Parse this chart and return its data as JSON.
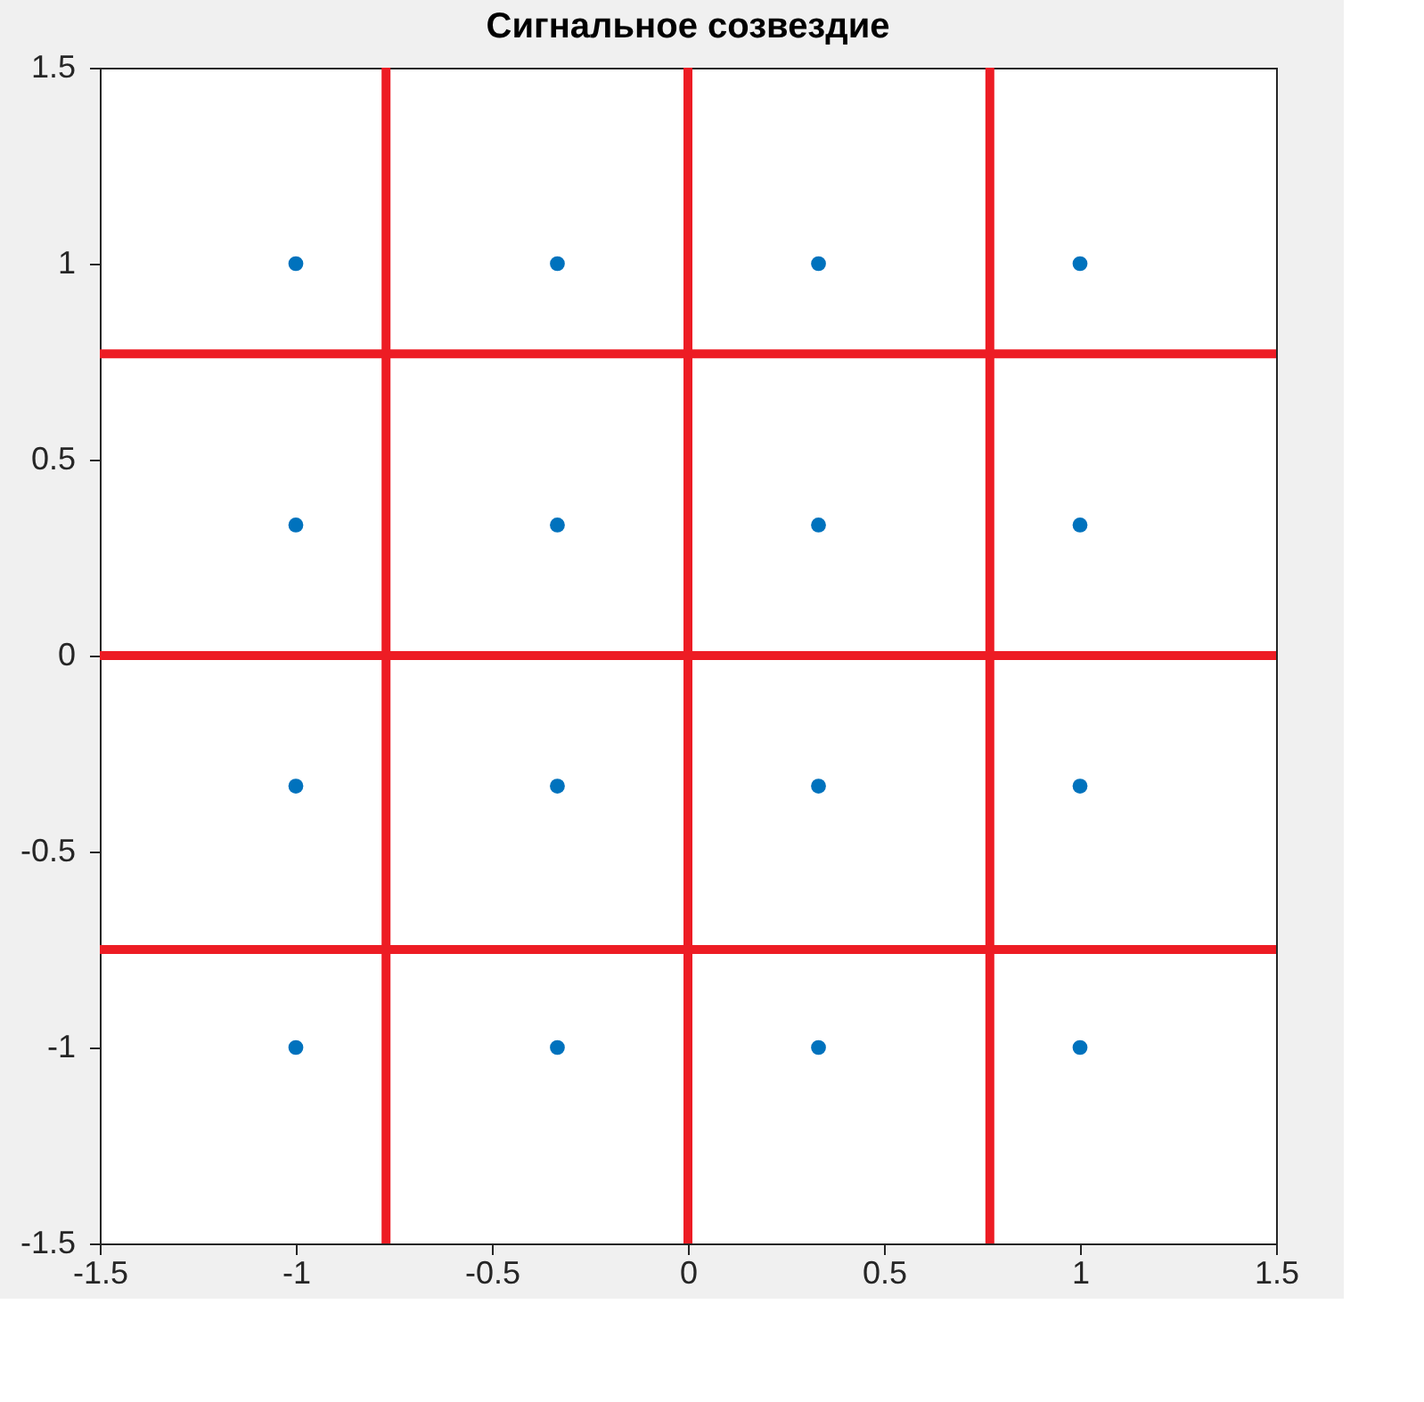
{
  "chart_data": {
    "type": "scatter",
    "title": "Сигнальное созвездие",
    "series": [
      {
        "color": "#0072bd",
        "x": [
          -1,
          -0.333,
          0.333,
          1,
          -1,
          -0.333,
          0.333,
          1,
          -1,
          -0.333,
          0.333,
          1,
          -1,
          -0.333,
          0.333,
          1
        ],
        "values": [
          1,
          1,
          1,
          1,
          0.333,
          0.333,
          0.333,
          0.333,
          -0.333,
          -0.333,
          -0.333,
          -0.333,
          -1,
          -1,
          -1,
          -1
        ]
      }
    ],
    "marker": "circle",
    "xlim": [
      -1.5,
      1.5
    ],
    "ylim": [
      -1.5,
      1.5
    ],
    "xticks": [
      -1.5,
      -1,
      -0.5,
      0,
      0.5,
      1,
      1.5
    ],
    "yticks": [
      -1.5,
      -1,
      -0.5,
      0,
      0.5,
      1,
      1.5
    ],
    "grid": false,
    "ref_lines": [
      {
        "axis": "x",
        "value": -0.77,
        "color": "#ed1c24"
      },
      {
        "axis": "x",
        "value": 0,
        "color": "#ed1c24"
      },
      {
        "axis": "x",
        "value": 0.77,
        "color": "#ed1c24"
      },
      {
        "axis": "y",
        "value": 0.77,
        "color": "#ed1c24"
      },
      {
        "axis": "y",
        "value": 0,
        "color": "#ed1c24"
      },
      {
        "axis": "y",
        "value": -0.75,
        "color": "#ed1c24"
      }
    ]
  }
}
